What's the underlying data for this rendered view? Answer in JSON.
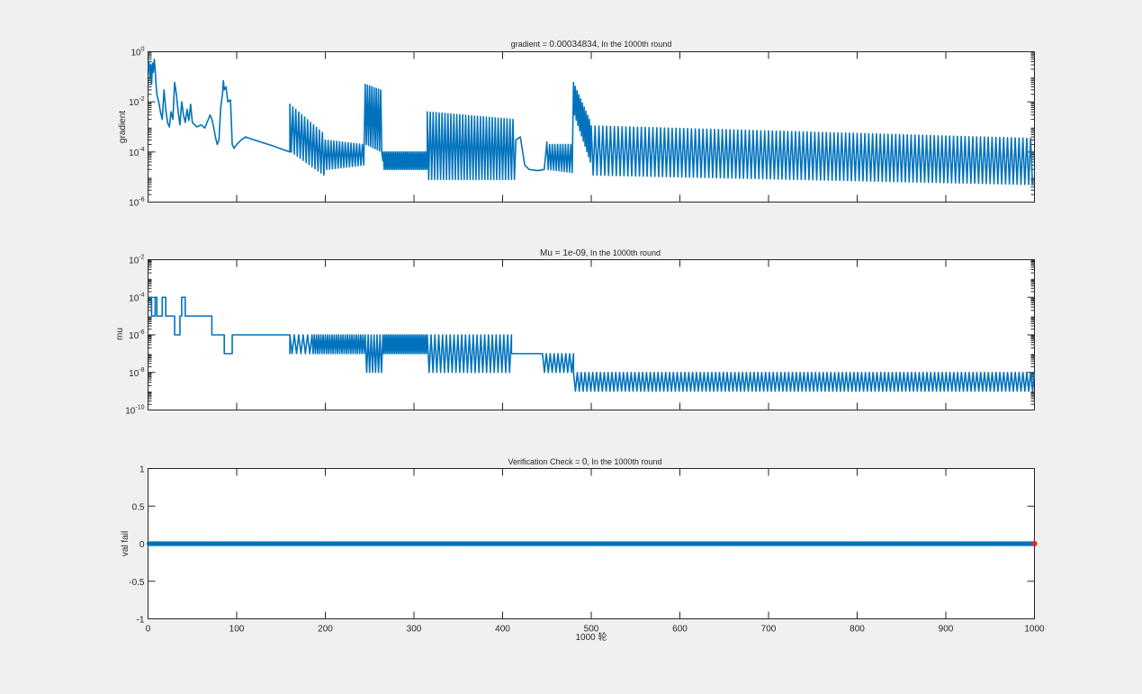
{
  "window": {
    "background": "#f0f0f0"
  },
  "chart_data": [
    {
      "type": "line",
      "title": "gradient = 0.00034834,  In the 1000th round",
      "title_parts": {
        "prefix": "gradient = ",
        "value": "0.00034834",
        "suffix": ",  In the 1000th round"
      },
      "xlabel": "",
      "ylabel": "gradient",
      "yscale": "log",
      "xlim": [
        0,
        1000
      ],
      "ylim": [
        1e-06,
        1
      ],
      "y_ticks": [
        {
          "base": "10",
          "exp": "-6",
          "value": 1e-06
        },
        {
          "base": "10",
          "exp": "-4",
          "value": 0.0001
        },
        {
          "base": "10",
          "exp": "-2",
          "value": 0.01
        },
        {
          "base": "10",
          "exp": "0",
          "value": 1
        }
      ],
      "color": "#0072bd",
      "segments": [
        {
          "type": "linelog",
          "pts": [
            [
              0,
              0.2
            ],
            [
              1,
              0.4
            ],
            [
              2,
              0.1
            ],
            [
              3,
              0.3
            ],
            [
              4,
              0.05
            ],
            [
              5,
              0.35
            ],
            [
              6,
              0.15
            ],
            [
              7,
              0.5
            ],
            [
              8,
              0.2
            ],
            [
              9,
              0.05
            ],
            [
              10,
              0.02
            ]
          ]
        },
        {
          "type": "linelog",
          "pts": [
            [
              10,
              0.02
            ],
            [
              12,
              0.01
            ],
            [
              14,
              0.004
            ],
            [
              16,
              0.002
            ],
            [
              18,
              0.03
            ],
            [
              20,
              0.005
            ],
            [
              22,
              0.0015
            ],
            [
              24,
              0.001
            ],
            [
              26,
              0.004
            ],
            [
              28,
              0.002
            ],
            [
              30,
              0.06
            ],
            [
              32,
              0.02
            ],
            [
              34,
              0.004
            ],
            [
              36,
              0.0012
            ],
            [
              38,
              0.01
            ],
            [
              40,
              0.003
            ],
            [
              42,
              0.0015
            ],
            [
              44,
              0.005
            ],
            [
              46,
              0.0018
            ],
            [
              48,
              0.008
            ],
            [
              50,
              0.0015
            ],
            [
              55,
              0.001
            ],
            [
              60,
              0.0012
            ],
            [
              64,
              0.0009
            ],
            [
              68,
              0.002
            ],
            [
              70,
              0.003
            ],
            [
              72,
              0.002
            ],
            [
              74,
              0.001
            ],
            [
              76,
              0.0004
            ],
            [
              78,
              0.0002
            ],
            [
              80,
              0.0003
            ],
            [
              82,
              0.006
            ],
            [
              84,
              0.02
            ],
            [
              85,
              0.07
            ],
            [
              86,
              0.03
            ],
            [
              88,
              0.04
            ],
            [
              90,
              0.01
            ],
            [
              93,
              0.012
            ],
            [
              95,
              0.0002
            ],
            [
              97,
              0.00014
            ],
            [
              100,
              0.0002
            ],
            [
              105,
              0.0003
            ],
            [
              110,
              0.0004
            ],
            [
              120,
              0.0003
            ],
            [
              140,
              0.00018
            ],
            [
              160,
              0.0001
            ]
          ]
        },
        {
          "type": "burst",
          "x0": 160,
          "x1": 200,
          "n": 12,
          "hiStart": 0.008,
          "hiEnd": 0.0006,
          "loStart": 0.0001,
          "loEnd": 1.2e-05
        },
        {
          "type": "burst",
          "x0": 200,
          "x1": 245,
          "n": 14,
          "hiStart": 0.0003,
          "hiEnd": 0.0002,
          "loStart": 2e-05,
          "loEnd": 3e-05
        },
        {
          "type": "burst",
          "x0": 245,
          "x1": 265,
          "n": 8,
          "hiStart": 0.05,
          "hiEnd": 0.03,
          "loStart": 0.0002,
          "loEnd": 0.0001
        },
        {
          "type": "sine",
          "x0": 265,
          "x1": 315,
          "n": 26,
          "center": 4.5e-05,
          "amp": 0.35
        },
        {
          "type": "burst",
          "x0": 315,
          "x1": 415,
          "n": 30,
          "hiStart": 0.004,
          "hiEnd": 0.002,
          "loStart": 8e-06,
          "loEnd": 8e-06
        },
        {
          "type": "linelog",
          "pts": [
            [
              415,
              0.0003
            ],
            [
              420,
              0.0004
            ],
            [
              425,
              3e-05
            ],
            [
              430,
              2e-05
            ],
            [
              440,
              1.8e-05
            ],
            [
              447,
              2e-05
            ],
            [
              450,
              0.00025
            ]
          ]
        },
        {
          "type": "burst",
          "x0": 450,
          "x1": 480,
          "n": 10,
          "hiStart": 0.0002,
          "hiEnd": 0.0002,
          "loStart": 2e-05,
          "loEnd": 1.5e-05
        },
        {
          "type": "burst",
          "x0": 480,
          "x1": 500,
          "n": 10,
          "hiStart": 0.06,
          "hiEnd": 0.002,
          "loStart": 0.003,
          "loEnd": 4e-05
        },
        {
          "type": "burst",
          "x0": 500,
          "x1": 1000,
          "n": 115,
          "hiStart": 0.0011,
          "hiEnd": 0.00035,
          "loStart": 1.2e-05,
          "loEnd": 5e-06
        }
      ]
    },
    {
      "type": "line",
      "title": "Mu = 1e-09,  In the 1000th round",
      "title_parts": {
        "prefix": "Mu = ",
        "value": "1e-09",
        "suffix": ",  In the 1000th round"
      },
      "xlabel": "",
      "ylabel": "mu",
      "yscale": "log",
      "xlim": [
        0,
        1000
      ],
      "ylim": [
        1e-10,
        0.01
      ],
      "y_ticks": [
        {
          "base": "10",
          "exp": "-10",
          "value": 1e-10
        },
        {
          "base": "10",
          "exp": "-8",
          "value": 1e-08
        },
        {
          "base": "10",
          "exp": "-6",
          "value": 1e-06
        },
        {
          "base": "10",
          "exp": "-4",
          "value": 0.0001
        },
        {
          "base": "10",
          "exp": "-2",
          "value": 0.01
        }
      ],
      "color": "#0072bd",
      "segments": [
        {
          "type": "steps",
          "pts": [
            [
              0,
              0.0001
            ],
            [
              4,
              1e-05
            ],
            [
              8,
              0.0001
            ],
            [
              10,
              1e-05
            ],
            [
              16,
              0.0001
            ],
            [
              20,
              1e-05
            ],
            [
              28,
              1e-05
            ],
            [
              30,
              1e-06
            ],
            [
              36,
              1e-05
            ],
            [
              38,
              0.0001
            ],
            [
              42,
              1e-05
            ],
            [
              72,
              1e-06
            ],
            [
              86,
              1e-07
            ],
            [
              95,
              1e-06
            ],
            [
              160,
              1e-07
            ]
          ]
        },
        {
          "type": "alt",
          "x0": 160,
          "x1": 185,
          "n": 5,
          "hi": 1e-06,
          "lo": 1e-07
        },
        {
          "type": "alt",
          "x0": 185,
          "x1": 245,
          "n": 24,
          "hi": 1e-06,
          "lo": 1e-07
        },
        {
          "type": "alt",
          "x0": 245,
          "x1": 265,
          "n": 6,
          "hi": 1e-06,
          "lo": 1e-08
        },
        {
          "type": "alt",
          "x0": 265,
          "x1": 315,
          "n": 25,
          "hi": 1e-06,
          "lo": 1e-07
        },
        {
          "type": "alt",
          "x0": 315,
          "x1": 410,
          "n": 22,
          "hi": 1e-06,
          "lo": 1e-08
        },
        {
          "type": "steps",
          "pts": [
            [
              410,
              1e-07
            ],
            [
              445,
              1e-07
            ]
          ]
        },
        {
          "type": "alt",
          "x0": 445,
          "x1": 480,
          "n": 8,
          "hi": 1e-07,
          "lo": 1e-08
        },
        {
          "type": "alt",
          "x0": 480,
          "x1": 1000,
          "n": 120,
          "hi": 1e-08,
          "lo": 1e-09
        }
      ]
    },
    {
      "type": "scatter",
      "title": "Verification Check = 0,  In the 1000th round",
      "title_parts": {
        "prefix": "Verification Check = ",
        "value": "0",
        "suffix": ",  In the 1000th round"
      },
      "xlabel": "1000 轮",
      "ylabel": "val fail",
      "yscale": "linear",
      "xlim": [
        0,
        1000
      ],
      "ylim": [
        -1,
        1
      ],
      "y_ticks": [
        {
          "label": "-1",
          "value": -1
        },
        {
          "label": "-0.5",
          "value": -0.5
        },
        {
          "label": "0",
          "value": 0
        },
        {
          "label": "0.5",
          "value": 0.5
        },
        {
          "label": "1",
          "value": 1
        }
      ],
      "x_ticks": [
        {
          "label": "0",
          "value": 0
        },
        {
          "label": "100",
          "value": 100
        },
        {
          "label": "200",
          "value": 200
        },
        {
          "label": "300",
          "value": 300
        },
        {
          "label": "400",
          "value": 400
        },
        {
          "label": "500",
          "value": 500
        },
        {
          "label": "600",
          "value": 600
        },
        {
          "label": "700",
          "value": 700
        },
        {
          "label": "800",
          "value": 800
        },
        {
          "label": "900",
          "value": 900
        },
        {
          "label": "1000",
          "value": 1000
        }
      ],
      "color": "#0072bd",
      "marker_color": "#0072bd",
      "final_marker_color": "#d03030",
      "x_range": [
        1,
        1000
      ],
      "marker_count": 1000,
      "constant_value": 0
    }
  ]
}
